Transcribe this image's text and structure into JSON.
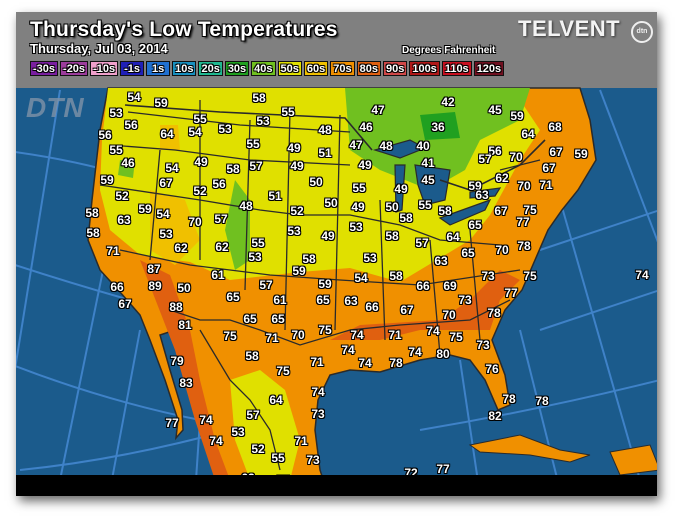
{
  "header": {
    "title": "Thursday's Low Temperatures",
    "date": "Thursday, Jul 03, 2014",
    "units": "Degrees Fahrenheit",
    "brand": "TELVENT",
    "brand_badge": "dtn",
    "watermark": "DTN"
  },
  "legend": [
    {
      "label": "-30s",
      "color": "#7a1fa0"
    },
    {
      "label": "-20s",
      "color": "#9c3c9c"
    },
    {
      "label": "-10s",
      "color": "#f0a0cc"
    },
    {
      "label": "-1s",
      "color": "#2020b8"
    },
    {
      "label": "1s",
      "color": "#2070d0"
    },
    {
      "label": "10s",
      "color": "#1890c0"
    },
    {
      "label": "20s",
      "color": "#20b890"
    },
    {
      "label": "30s",
      "color": "#20a020"
    },
    {
      "label": "40s",
      "color": "#70c020"
    },
    {
      "label": "50s",
      "color": "#e0e000"
    },
    {
      "label": "60s",
      "color": "#f0c000"
    },
    {
      "label": "70s",
      "color": "#f09000"
    },
    {
      "label": "80s",
      "color": "#e06010"
    },
    {
      "label": "90s",
      "color": "#d04848"
    },
    {
      "label": "100s",
      "color": "#b01818"
    },
    {
      "label": "110s",
      "color": "#c81020"
    },
    {
      "label": "120s",
      "color": "#701020"
    }
  ],
  "temperatures": [
    "54",
    "59",
    "53",
    "56",
    "55",
    "54",
    "53",
    "58",
    "55",
    "53",
    "56",
    "64",
    "55",
    "46",
    "55",
    "49",
    "48",
    "51",
    "54",
    "49",
    "58",
    "57",
    "49",
    "59",
    "67",
    "56",
    "52",
    "50",
    "51",
    "48",
    "52",
    "50",
    "52",
    "59",
    "54",
    "58",
    "63",
    "70",
    "57",
    "53",
    "49",
    "58",
    "53",
    "62",
    "62",
    "55",
    "53",
    "71",
    "58",
    "59",
    "87",
    "55",
    "49",
    "50",
    "55",
    "58",
    "53",
    "49",
    "58",
    "57",
    "63",
    "53",
    "54",
    "58",
    "57",
    "59",
    "61",
    "65",
    "61",
    "65",
    "63",
    "66",
    "67",
    "66",
    "65",
    "65",
    "75",
    "74",
    "71",
    "75",
    "71",
    "70",
    "74",
    "74",
    "58",
    "71",
    "74",
    "78",
    "74",
    "80",
    "75",
    "66",
    "89",
    "50",
    "67",
    "88",
    "81",
    "79",
    "83",
    "64",
    "74",
    "73",
    "77",
    "74",
    "57",
    "53",
    "74",
    "71",
    "52",
    "55",
    "73",
    "62",
    "57",
    "47",
    "42",
    "45",
    "36",
    "59",
    "46",
    "64",
    "68",
    "47",
    "48",
    "40",
    "56",
    "57",
    "70",
    "67",
    "59",
    "49",
    "41",
    "67",
    "62",
    "70",
    "71",
    "45",
    "59",
    "63",
    "58",
    "67",
    "75",
    "77",
    "64",
    "65",
    "78",
    "70",
    "65",
    "73",
    "75",
    "74",
    "69",
    "77",
    "73",
    "70",
    "78",
    "75",
    "73",
    "76",
    "78",
    "78",
    "82",
    "72",
    "77",
    "80",
    "79"
  ],
  "colors": {
    "ocean": "#1b5b8c",
    "grid": "#3f82c8",
    "temp_50s": "#e0e000",
    "temp_60s": "#f0c000",
    "temp_70s": "#f09000",
    "temp_80s": "#e06010",
    "temp_40s": "#70c020"
  }
}
